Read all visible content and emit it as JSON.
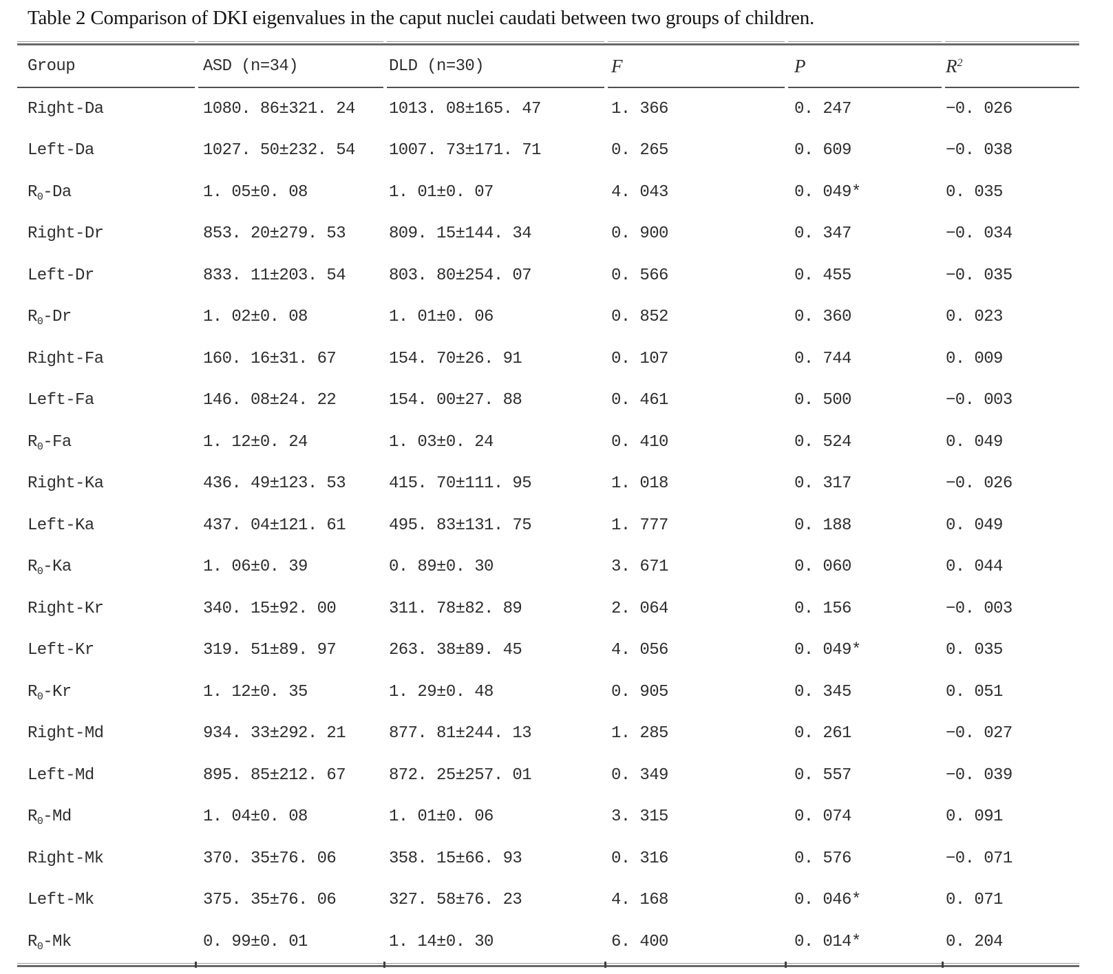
{
  "title": "Table 2 Comparison of DKI eigenvalues in the caput nuclei caudati between two groups of children.",
  "table": {
    "columns": {
      "group": "Group",
      "asd": "ASD (n=34)",
      "dld": "DLD (n=30)",
      "f": "F",
      "p": "P",
      "r2_base": "R",
      "r2_sup": "2"
    },
    "rows": [
      {
        "label": "Right-Da",
        "sub": "",
        "rest": "",
        "asd": "1080. 86±321. 24",
        "dld": "1013. 08±165. 47",
        "f": "1. 366",
        "p": "0. 247",
        "r2": "−0. 026"
      },
      {
        "label": "Left-Da",
        "sub": "",
        "rest": "",
        "asd": "1027. 50±232. 54",
        "dld": "1007. 73±171. 71",
        "f": "0. 265",
        "p": "0. 609",
        "r2": "−0. 038"
      },
      {
        "label": "R",
        "sub": "0",
        "rest": "-Da",
        "asd": "1. 05±0. 08",
        "dld": "1. 01±0. 07",
        "f": "4. 043",
        "p": "0. 049*",
        "r2": "0. 035"
      },
      {
        "label": "Right-Dr",
        "sub": "",
        "rest": "",
        "asd": "853. 20±279. 53",
        "dld": "809. 15±144. 34",
        "f": "0. 900",
        "p": "0. 347",
        "r2": "−0. 034"
      },
      {
        "label": "Left-Dr",
        "sub": "",
        "rest": "",
        "asd": "833. 11±203. 54",
        "dld": "803. 80±254. 07",
        "f": "0. 566",
        "p": "0. 455",
        "r2": "−0. 035"
      },
      {
        "label": "R",
        "sub": "0",
        "rest": "-Dr",
        "asd": "1. 02±0. 08",
        "dld": "1. 01±0. 06",
        "f": "0. 852",
        "p": "0. 360",
        "r2": "0. 023"
      },
      {
        "label": "Right-Fa",
        "sub": "",
        "rest": "",
        "asd": "160. 16±31. 67",
        "dld": "154. 70±26. 91",
        "f": "0. 107",
        "p": "0. 744",
        "r2": "0. 009"
      },
      {
        "label": "Left-Fa",
        "sub": "",
        "rest": "",
        "asd": "146. 08±24. 22",
        "dld": "154. 00±27. 88",
        "f": "0. 461",
        "p": "0. 500",
        "r2": "−0. 003"
      },
      {
        "label": "R",
        "sub": "0",
        "rest": "-Fa",
        "asd": "1. 12±0. 24",
        "dld": "1. 03±0. 24",
        "f": "0. 410",
        "p": "0. 524",
        "r2": "0. 049"
      },
      {
        "label": "Right-Ka",
        "sub": "",
        "rest": "",
        "asd": "436. 49±123. 53",
        "dld": "415. 70±111. 95",
        "f": "1. 018",
        "p": "0. 317",
        "r2": "−0. 026"
      },
      {
        "label": "Left-Ka",
        "sub": "",
        "rest": "",
        "asd": "437. 04±121. 61",
        "dld": "495. 83±131. 75",
        "f": "1. 777",
        "p": "0. 188",
        "r2": "0. 049"
      },
      {
        "label": "R",
        "sub": "0",
        "rest": "-Ka",
        "asd": "1. 06±0. 39",
        "dld": "0. 89±0. 30",
        "f": "3. 671",
        "p": "0. 060",
        "r2": "0. 044"
      },
      {
        "label": "Right-Kr",
        "sub": "",
        "rest": "",
        "asd": "340. 15±92. 00",
        "dld": "311. 78±82. 89",
        "f": "2. 064",
        "p": "0. 156",
        "r2": "−0. 003"
      },
      {
        "label": "Left-Kr",
        "sub": "",
        "rest": "",
        "asd": "319. 51±89. 97",
        "dld": "263. 38±89. 45",
        "f": "4. 056",
        "p": "0. 049*",
        "r2": "0. 035"
      },
      {
        "label": "R",
        "sub": "0",
        "rest": "-Kr",
        "asd": "1. 12±0. 35",
        "dld": "1. 29±0. 48",
        "f": "0. 905",
        "p": "0. 345",
        "r2": "0. 051"
      },
      {
        "label": "Right-Md",
        "sub": "",
        "rest": "",
        "asd": "934. 33±292. 21",
        "dld": "877. 81±244. 13",
        "f": "1. 285",
        "p": "0. 261",
        "r2": "−0. 027"
      },
      {
        "label": "Left-Md",
        "sub": "",
        "rest": "",
        "asd": "895. 85±212. 67",
        "dld": "872. 25±257. 01",
        "f": "0. 349",
        "p": "0. 557",
        "r2": "−0. 039"
      },
      {
        "label": "R",
        "sub": "0",
        "rest": "-Md",
        "asd": "1. 04±0. 08",
        "dld": "1. 01±0. 06",
        "f": "3. 315",
        "p": "0. 074",
        "r2": "0. 091"
      },
      {
        "label": "Right-Mk",
        "sub": "",
        "rest": "",
        "asd": "370. 35±76. 06",
        "dld": "358. 15±66. 93",
        "f": "0. 316",
        "p": "0. 576",
        "r2": "−0. 071"
      },
      {
        "label": "Left-Mk",
        "sub": "",
        "rest": "",
        "asd": "375. 35±76. 06",
        "dld": "327. 58±76. 23",
        "f": "4. 168",
        "p": "0. 046*",
        "r2": "0. 071"
      },
      {
        "label": "R",
        "sub": "0",
        "rest": "-Mk",
        "asd": "0. 99±0. 01",
        "dld": "1. 14±0. 30",
        "f": "6. 400",
        "p": "0. 014*",
        "r2": "0. 204"
      }
    ]
  },
  "colors": {
    "rule_heavy": "#686868",
    "rule_mid": "#4f4f4f",
    "text": "#2e2e2e"
  }
}
